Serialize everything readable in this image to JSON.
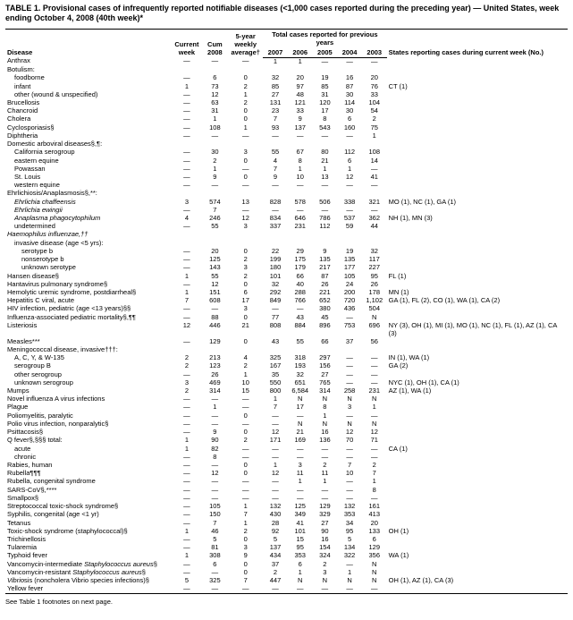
{
  "title": "TABLE 1. Provisional cases of infrequently reported notifiable diseases (<1,000 cases reported during the preceding year) — United States, week ending October 4, 2008 (40th week)*",
  "footnote": "See Table 1 footnotes on next page.",
  "headers": {
    "disease": "Disease",
    "current_week": "Current week",
    "cum_2008": "Cum 2008",
    "five_year": "5-year weekly average†",
    "total_group": "Total cases reported for previous years",
    "y2007": "2007",
    "y2006": "2006",
    "y2005": "2005",
    "y2004": "2004",
    "y2003": "2003",
    "states": "States reporting cases during current week (No.)"
  },
  "colors": {
    "text": "#000000",
    "background": "#ffffff",
    "rule": "#000000"
  },
  "fontsize": {
    "title": 9,
    "body": 7.5
  },
  "rows": [
    {
      "d": "Anthrax",
      "i": 0,
      "c": [
        "—",
        "—",
        "—",
        "1",
        "1",
        "—",
        "—",
        "—"
      ],
      "s": ""
    },
    {
      "d": "Botulism:",
      "i": 0,
      "c": [
        "",
        "",
        "",
        "",
        "",
        "",
        "",
        ""
      ],
      "s": ""
    },
    {
      "d": "foodborne",
      "i": 1,
      "c": [
        "—",
        "6",
        "0",
        "32",
        "20",
        "19",
        "16",
        "20"
      ],
      "s": ""
    },
    {
      "d": "infant",
      "i": 1,
      "c": [
        "1",
        "73",
        "2",
        "85",
        "97",
        "85",
        "87",
        "76"
      ],
      "s": "CT (1)"
    },
    {
      "d": "other (wound & unspecified)",
      "i": 1,
      "c": [
        "—",
        "12",
        "1",
        "27",
        "48",
        "31",
        "30",
        "33"
      ],
      "s": ""
    },
    {
      "d": "Brucellosis",
      "i": 0,
      "c": [
        "—",
        "63",
        "2",
        "131",
        "121",
        "120",
        "114",
        "104"
      ],
      "s": ""
    },
    {
      "d": "Chancroid",
      "i": 0,
      "c": [
        "—",
        "31",
        "0",
        "23",
        "33",
        "17",
        "30",
        "54"
      ],
      "s": ""
    },
    {
      "d": "Cholera",
      "i": 0,
      "c": [
        "—",
        "1",
        "0",
        "7",
        "9",
        "8",
        "6",
        "2"
      ],
      "s": ""
    },
    {
      "d": "Cyclosporiasis§",
      "i": 0,
      "c": [
        "—",
        "108",
        "1",
        "93",
        "137",
        "543",
        "160",
        "75"
      ],
      "s": ""
    },
    {
      "d": "Diphtheria",
      "i": 0,
      "c": [
        "—",
        "—",
        "—",
        "—",
        "—",
        "—",
        "—",
        "1"
      ],
      "s": ""
    },
    {
      "d": "Domestic arboviral diseases§,¶:",
      "i": 0,
      "c": [
        "",
        "",
        "",
        "",
        "",
        "",
        "",
        ""
      ],
      "s": ""
    },
    {
      "d": "California serogroup",
      "i": 1,
      "c": [
        "—",
        "30",
        "3",
        "55",
        "67",
        "80",
        "112",
        "108"
      ],
      "s": ""
    },
    {
      "d": "eastern equine",
      "i": 1,
      "c": [
        "—",
        "2",
        "0",
        "4",
        "8",
        "21",
        "6",
        "14"
      ],
      "s": ""
    },
    {
      "d": "Powassan",
      "i": 1,
      "c": [
        "—",
        "1",
        "—",
        "7",
        "1",
        "1",
        "1",
        "—"
      ],
      "s": ""
    },
    {
      "d": "St. Louis",
      "i": 1,
      "c": [
        "—",
        "9",
        "0",
        "9",
        "10",
        "13",
        "12",
        "41"
      ],
      "s": ""
    },
    {
      "d": "western equine",
      "i": 1,
      "c": [
        "—",
        "—",
        "—",
        "—",
        "—",
        "—",
        "—",
        "—"
      ],
      "s": ""
    },
    {
      "d": "Ehrlichiosis/Anaplasmosis§,**:",
      "i": 0,
      "c": [
        "",
        "",
        "",
        "",
        "",
        "",
        "",
        ""
      ],
      "s": ""
    },
    {
      "d": "Ehrlichia chaffeensis",
      "i": 1,
      "c": [
        "3",
        "574",
        "13",
        "828",
        "578",
        "506",
        "338",
        "321"
      ],
      "s": "MO (1), NC (1), GA (1)",
      "it": true
    },
    {
      "d": "Ehrlichia ewingii",
      "i": 1,
      "c": [
        "—",
        "7",
        "—",
        "—",
        "—",
        "—",
        "—",
        "—"
      ],
      "s": "",
      "it": true
    },
    {
      "d": "Anaplasma phagocytophilum",
      "i": 1,
      "c": [
        "4",
        "246",
        "12",
        "834",
        "646",
        "786",
        "537",
        "362"
      ],
      "s": "NH (1), MN (3)",
      "it": true
    },
    {
      "d": "undetermined",
      "i": 1,
      "c": [
        "—",
        "55",
        "3",
        "337",
        "231",
        "112",
        "59",
        "44"
      ],
      "s": ""
    },
    {
      "d": "Haemophilus influenzae,††",
      "i": 0,
      "c": [
        "",
        "",
        "",
        "",
        "",
        "",
        "",
        ""
      ],
      "s": "",
      "it": true
    },
    {
      "d": "invasive disease (age <5 yrs):",
      "i": 1,
      "c": [
        "",
        "",
        "",
        "",
        "",
        "",
        "",
        ""
      ],
      "s": ""
    },
    {
      "d": "serotype b",
      "i": 2,
      "c": [
        "—",
        "20",
        "0",
        "22",
        "29",
        "9",
        "19",
        "32"
      ],
      "s": ""
    },
    {
      "d": "nonserotype b",
      "i": 2,
      "c": [
        "—",
        "125",
        "2",
        "199",
        "175",
        "135",
        "135",
        "117"
      ],
      "s": ""
    },
    {
      "d": "unknown serotype",
      "i": 2,
      "c": [
        "—",
        "143",
        "3",
        "180",
        "179",
        "217",
        "177",
        "227"
      ],
      "s": ""
    },
    {
      "d": "Hansen disease§",
      "i": 0,
      "c": [
        "1",
        "55",
        "2",
        "101",
        "66",
        "87",
        "105",
        "95"
      ],
      "s": "FL (1)"
    },
    {
      "d": "Hantavirus pulmonary syndrome§",
      "i": 0,
      "c": [
        "—",
        "12",
        "0",
        "32",
        "40",
        "26",
        "24",
        "26"
      ],
      "s": ""
    },
    {
      "d": "Hemolytic uremic syndrome, postdiarrheal§",
      "i": 0,
      "c": [
        "1",
        "151",
        "6",
        "292",
        "288",
        "221",
        "200",
        "178"
      ],
      "s": "MN (1)"
    },
    {
      "d": "Hepatitis C viral, acute",
      "i": 0,
      "c": [
        "7",
        "608",
        "17",
        "849",
        "766",
        "652",
        "720",
        "1,102"
      ],
      "s": "GA (1), FL (2), CO (1), WA (1), CA (2)"
    },
    {
      "d": "HIV infection, pediatric (age <13 years)§§",
      "i": 0,
      "c": [
        "—",
        "—",
        "3",
        "—",
        "—",
        "380",
        "436",
        "504"
      ],
      "s": ""
    },
    {
      "d": "Influenza-associated pediatric mortality§,¶¶",
      "i": 0,
      "c": [
        "—",
        "88",
        "0",
        "77",
        "43",
        "45",
        "—",
        "N"
      ],
      "s": ""
    },
    {
      "d": "Listeriosis",
      "i": 0,
      "c": [
        "12",
        "446",
        "21",
        "808",
        "884",
        "896",
        "753",
        "696"
      ],
      "s": "NY (3), OH (1), MI (1), MO (1), NC (1), FL (1), AZ (1), CA (3)"
    },
    {
      "d": "Measles***",
      "i": 0,
      "c": [
        "—",
        "129",
        "0",
        "43",
        "55",
        "66",
        "37",
        "56"
      ],
      "s": ""
    },
    {
      "d": "Meningococcal disease, invasive†††:",
      "i": 0,
      "c": [
        "",
        "",
        "",
        "",
        "",
        "",
        "",
        ""
      ],
      "s": ""
    },
    {
      "d": "A, C, Y, & W-135",
      "i": 1,
      "c": [
        "2",
        "213",
        "4",
        "325",
        "318",
        "297",
        "—",
        "—"
      ],
      "s": "IN (1), WA (1)"
    },
    {
      "d": "serogroup B",
      "i": 1,
      "c": [
        "2",
        "123",
        "2",
        "167",
        "193",
        "156",
        "—",
        "—"
      ],
      "s": "GA (2)"
    },
    {
      "d": "other serogroup",
      "i": 1,
      "c": [
        "—",
        "26",
        "1",
        "35",
        "32",
        "27",
        "—",
        "—"
      ],
      "s": ""
    },
    {
      "d": "unknown serogroup",
      "i": 1,
      "c": [
        "3",
        "469",
        "10",
        "550",
        "651",
        "765",
        "—",
        "—"
      ],
      "s": "NYC (1), OH (1), CA (1)"
    },
    {
      "d": "Mumps",
      "i": 0,
      "c": [
        "2",
        "314",
        "15",
        "800",
        "6,584",
        "314",
        "258",
        "231"
      ],
      "s": "AZ (1), WA (1)"
    },
    {
      "d": "Novel influenza A virus infections",
      "i": 0,
      "c": [
        "—",
        "—",
        "—",
        "1",
        "N",
        "N",
        "N",
        "N"
      ],
      "s": ""
    },
    {
      "d": "Plague",
      "i": 0,
      "c": [
        "—",
        "1",
        "—",
        "7",
        "17",
        "8",
        "3",
        "1"
      ],
      "s": ""
    },
    {
      "d": "Poliomyelitis, paralytic",
      "i": 0,
      "c": [
        "—",
        "—",
        "0",
        "—",
        "—",
        "1",
        "—",
        "—"
      ],
      "s": ""
    },
    {
      "d": "Polio virus infection, nonparalytic§",
      "i": 0,
      "c": [
        "—",
        "—",
        "—",
        "—",
        "N",
        "N",
        "N",
        "N"
      ],
      "s": ""
    },
    {
      "d": "Psittacosis§",
      "i": 0,
      "c": [
        "—",
        "9",
        "0",
        "12",
        "21",
        "16",
        "12",
        "12"
      ],
      "s": ""
    },
    {
      "d": "Q fever§,§§§ total:",
      "i": 0,
      "c": [
        "1",
        "90",
        "2",
        "171",
        "169",
        "136",
        "70",
        "71"
      ],
      "s": ""
    },
    {
      "d": "acute",
      "i": 1,
      "c": [
        "1",
        "82",
        "—",
        "—",
        "—",
        "—",
        "—",
        "—"
      ],
      "s": "CA (1)"
    },
    {
      "d": "chronic",
      "i": 1,
      "c": [
        "—",
        "8",
        "—",
        "—",
        "—",
        "—",
        "—",
        "—"
      ],
      "s": ""
    },
    {
      "d": "Rabies, human",
      "i": 0,
      "c": [
        "—",
        "—",
        "0",
        "1",
        "3",
        "2",
        "7",
        "2"
      ],
      "s": ""
    },
    {
      "d": "Rubella¶¶¶",
      "i": 0,
      "c": [
        "—",
        "12",
        "0",
        "12",
        "11",
        "11",
        "10",
        "7"
      ],
      "s": ""
    },
    {
      "d": "Rubella, congenital syndrome",
      "i": 0,
      "c": [
        "—",
        "—",
        "—",
        "—",
        "1",
        "1",
        "—",
        "1"
      ],
      "s": ""
    },
    {
      "d": "SARS-CoV§,****",
      "i": 0,
      "c": [
        "—",
        "—",
        "—",
        "—",
        "—",
        "—",
        "—",
        "8"
      ],
      "s": ""
    },
    {
      "d": "Smallpox§",
      "i": 0,
      "c": [
        "—",
        "—",
        "—",
        "—",
        "—",
        "—",
        "—",
        "—"
      ],
      "s": ""
    },
    {
      "d": "Streptococcal toxic-shock syndrome§",
      "i": 0,
      "c": [
        "—",
        "105",
        "1",
        "132",
        "125",
        "129",
        "132",
        "161"
      ],
      "s": ""
    },
    {
      "d": "Syphilis, congenital (age <1 yr)",
      "i": 0,
      "c": [
        "—",
        "150",
        "7",
        "430",
        "349",
        "329",
        "353",
        "413"
      ],
      "s": ""
    },
    {
      "d": "Tetanus",
      "i": 0,
      "c": [
        "—",
        "7",
        "1",
        "28",
        "41",
        "27",
        "34",
        "20"
      ],
      "s": ""
    },
    {
      "d": "Toxic-shock syndrome (staphylococcal)§",
      "i": 0,
      "c": [
        "1",
        "46",
        "2",
        "92",
        "101",
        "90",
        "95",
        "133"
      ],
      "s": "OH (1)"
    },
    {
      "d": "Trichinellosis",
      "i": 0,
      "c": [
        "—",
        "5",
        "0",
        "5",
        "15",
        "16",
        "5",
        "6"
      ],
      "s": ""
    },
    {
      "d": "Tularemia",
      "i": 0,
      "c": [
        "—",
        "81",
        "3",
        "137",
        "95",
        "154",
        "134",
        "129"
      ],
      "s": ""
    },
    {
      "d": "Typhoid fever",
      "i": 0,
      "c": [
        "1",
        "308",
        "9",
        "434",
        "353",
        "324",
        "322",
        "356"
      ],
      "s": "WA (1)"
    },
    {
      "d": "Vancomycin-intermediate Staphylococcus aureus§",
      "i": 0,
      "c": [
        "—",
        "6",
        "0",
        "37",
        "6",
        "2",
        "—",
        "N"
      ],
      "s": "",
      "pit": true
    },
    {
      "d": "Vancomycin-resistant Staphylococcus aureus§",
      "i": 0,
      "c": [
        "—",
        "—",
        "0",
        "2",
        "1",
        "3",
        "1",
        "N"
      ],
      "s": "",
      "pit": true
    },
    {
      "d": "Vibriosis (noncholera Vibrio species infections)§",
      "i": 0,
      "c": [
        "5",
        "325",
        "7",
        "447",
        "N",
        "N",
        "N",
        "N"
      ],
      "s": "OH (1), AZ (1), CA (3)",
      "pit": true
    },
    {
      "d": "Yellow fever",
      "i": 0,
      "c": [
        "—",
        "—",
        "—",
        "—",
        "—",
        "—",
        "—",
        "—"
      ],
      "s": ""
    }
  ]
}
